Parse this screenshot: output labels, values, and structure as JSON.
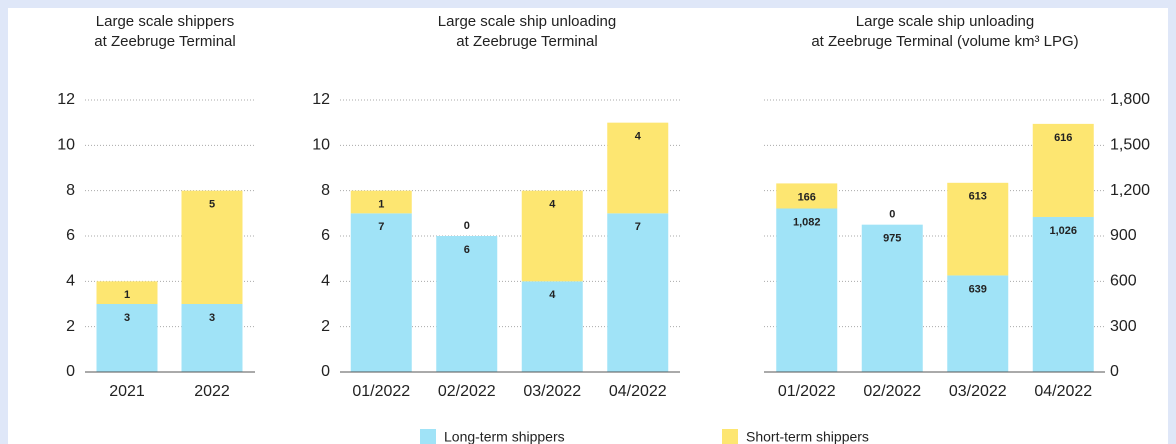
{
  "chart_data": [
    {
      "type": "bar",
      "stacked": true,
      "title": [
        "Large scale shippers",
        "at Zeebruge Terminal"
      ],
      "categories": [
        "2021",
        "2022"
      ],
      "series": [
        {
          "name": "Long-term shippers",
          "color": "#a0e3f7",
          "values": [
            3,
            3
          ]
        },
        {
          "name": "Short-term shippers",
          "color": "#fde671",
          "values": [
            1,
            5
          ]
        }
      ],
      "ylim": [
        0,
        12
      ],
      "yticks": [
        0,
        2,
        4,
        6,
        8,
        10,
        12
      ],
      "grid": true,
      "y_axis_position": "left"
    },
    {
      "type": "bar",
      "stacked": true,
      "title": [
        "Large scale ship unloading",
        "at Zeebruge Terminal"
      ],
      "categories": [
        "01/2022",
        "02/2022",
        "03/2022",
        "04/2022"
      ],
      "series": [
        {
          "name": "Long-term shippers",
          "color": "#a0e3f7",
          "values": [
            7,
            6,
            4,
            7
          ]
        },
        {
          "name": "Short-term shippers",
          "color": "#fde671",
          "values": [
            1,
            0,
            4,
            4
          ]
        }
      ],
      "ylim": [
        0,
        12
      ],
      "yticks": [
        0,
        2,
        4,
        6,
        8,
        10,
        12
      ],
      "grid": true,
      "y_axis_position": "left"
    },
    {
      "type": "bar",
      "stacked": true,
      "title": [
        "Large scale ship unloading",
        "at Zeebruge Terminal (volume km³ LPG)"
      ],
      "categories": [
        "01/2022",
        "02/2022",
        "03/2022",
        "04/2022"
      ],
      "series": [
        {
          "name": "Long-term shippers",
          "color": "#a0e3f7",
          "values": [
            1082,
            975,
            639,
            1026
          ],
          "value_labels": [
            "1,082",
            "975",
            "639",
            "1,026"
          ]
        },
        {
          "name": "Short-term shippers",
          "color": "#fde671",
          "values": [
            166,
            0,
            613,
            616
          ]
        }
      ],
      "ylim": [
        0,
        1800
      ],
      "yticks": [
        0,
        300,
        600,
        900,
        {
          "value": 1200,
          "label": "1,200"
        },
        {
          "value": 1500,
          "label": "1,500"
        },
        {
          "value": 1800,
          "label": "1,800"
        }
      ],
      "grid": true,
      "y_axis_position": "right"
    }
  ]
}
